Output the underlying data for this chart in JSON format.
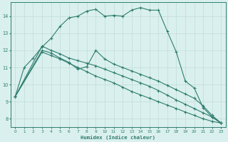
{
  "xlabel": "Humidex (Indice chaleur)",
  "bg_color": "#daf0ee",
  "line_color": "#2e7d6e",
  "grid_color": "#c0dcd8",
  "xlim": [
    -0.5,
    23.5
  ],
  "ylim": [
    7.5,
    14.8
  ],
  "yticks": [
    8,
    9,
    10,
    11,
    12,
    13,
    14
  ],
  "xticks": [
    0,
    1,
    2,
    3,
    4,
    5,
    6,
    7,
    8,
    9,
    10,
    11,
    12,
    13,
    14,
    15,
    16,
    17,
    18,
    19,
    20,
    21,
    22,
    23
  ],
  "series": [
    {
      "x": [
        0,
        1,
        2,
        3,
        4,
        5,
        6,
        7,
        8,
        9,
        10,
        11,
        12,
        13,
        14,
        15,
        16,
        17,
        18,
        19,
        20,
        21,
        22,
        23
      ],
      "y": [
        9.3,
        11.0,
        11.55,
        12.2,
        12.7,
        13.4,
        13.9,
        14.0,
        14.3,
        14.4,
        14.0,
        14.05,
        14.0,
        14.35,
        14.5,
        14.35,
        14.35,
        13.1,
        11.9,
        10.2,
        9.8,
        8.65,
        8.1,
        7.75
      ]
    },
    {
      "x": [
        0,
        3,
        4,
        5,
        6,
        7,
        8,
        9,
        10,
        11,
        12,
        13,
        14,
        15,
        16,
        17,
        18,
        19,
        20,
        21,
        22,
        23
      ],
      "y": [
        9.3,
        12.25,
        12.0,
        11.8,
        11.55,
        11.4,
        11.25,
        11.1,
        10.9,
        10.7,
        10.5,
        10.3,
        10.1,
        9.9,
        9.65,
        9.38,
        9.1,
        8.85,
        8.6,
        8.35,
        8.1,
        7.75
      ]
    },
    {
      "x": [
        0,
        3,
        4,
        5,
        6,
        7,
        8,
        9,
        10,
        11,
        12,
        13,
        14,
        15,
        16,
        17,
        18,
        19,
        20,
        21,
        22,
        23
      ],
      "y": [
        9.3,
        12.0,
        11.85,
        11.55,
        11.3,
        10.9,
        11.05,
        12.0,
        11.5,
        11.2,
        11.0,
        10.8,
        10.6,
        10.4,
        10.2,
        9.95,
        9.7,
        9.45,
        9.2,
        8.75,
        8.2,
        7.75
      ]
    },
    {
      "x": [
        0,
        3,
        4,
        5,
        6,
        7,
        8,
        9,
        10,
        11,
        12,
        13,
        14,
        15,
        16,
        17,
        18,
        19,
        20,
        21,
        22,
        23
      ],
      "y": [
        9.3,
        11.9,
        11.7,
        11.5,
        11.25,
        11.0,
        10.75,
        10.5,
        10.3,
        10.1,
        9.85,
        9.6,
        9.4,
        9.2,
        9.0,
        8.8,
        8.6,
        8.4,
        8.2,
        8.0,
        7.85,
        7.75
      ]
    }
  ]
}
